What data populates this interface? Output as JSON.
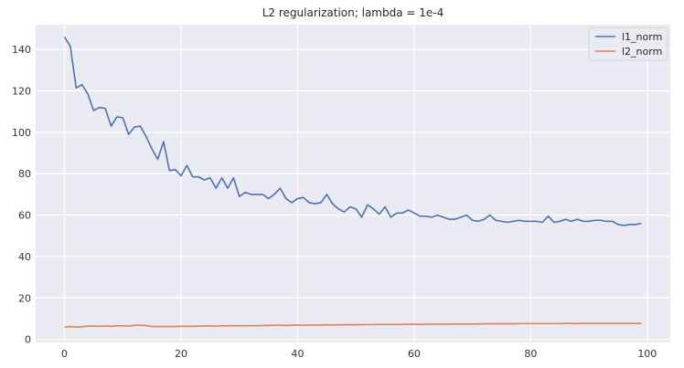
{
  "chart_data": {
    "type": "line",
    "title": "L2 regularization; lambda = 1e-4",
    "xlabel": "",
    "ylabel": "",
    "xlim": [
      -4.95,
      103.95
    ],
    "ylim": [
      -1.5,
      152
    ],
    "xticks": [
      0,
      20,
      40,
      60,
      80,
      100
    ],
    "yticks": [
      0,
      20,
      40,
      60,
      80,
      100,
      120,
      140
    ],
    "grid": true,
    "legend": "top-right",
    "series": [
      {
        "name": "l1_norm",
        "color": "#4c72b0",
        "x": [
          0,
          1,
          2,
          3,
          4,
          5,
          6,
          7,
          8,
          9,
          10,
          11,
          12,
          13,
          14,
          15,
          16,
          17,
          18,
          19,
          20,
          21,
          22,
          23,
          24,
          25,
          26,
          27,
          28,
          29,
          30,
          31,
          32,
          33,
          34,
          35,
          36,
          37,
          38,
          39,
          40,
          41,
          42,
          43,
          44,
          45,
          46,
          47,
          48,
          49,
          50,
          51,
          52,
          53,
          54,
          55,
          56,
          57,
          58,
          59,
          60,
          61,
          62,
          63,
          64,
          65,
          66,
          67,
          68,
          69,
          70,
          71,
          72,
          73,
          74,
          75,
          76,
          77,
          78,
          79,
          80,
          81,
          82,
          83,
          84,
          85,
          86,
          87,
          88,
          89,
          90,
          91,
          92,
          93,
          94,
          95,
          96,
          97,
          98,
          99
        ],
        "y": [
          146,
          141.5,
          121.5,
          123,
          118.5,
          110.5,
          112,
          111.5,
          103,
          107.5,
          107,
          99,
          102.5,
          103,
          98,
          92,
          87,
          95.5,
          81.5,
          82,
          79,
          84,
          78.5,
          78.5,
          77,
          78,
          73,
          78,
          73,
          78,
          69,
          71,
          70,
          70,
          70,
          68,
          70,
          73,
          68,
          66,
          68,
          68.5,
          66,
          65.5,
          66,
          70,
          65.5,
          63,
          61.5,
          64,
          63,
          59,
          65,
          63,
          60.5,
          64,
          59,
          61,
          61,
          62.5,
          61,
          59.5,
          59.5,
          59,
          60,
          59,
          58,
          58,
          59,
          60,
          57.5,
          57,
          58,
          60,
          57.5,
          57,
          56.5,
          57,
          57.5,
          57,
          57,
          57,
          56.5,
          59.5,
          56.5,
          57,
          58,
          57,
          58,
          57,
          57,
          57.5,
          57.5,
          57,
          57,
          55.5,
          55,
          55.5,
          55.5,
          56
        ]
      },
      {
        "name": "l2_norm",
        "color": "#dd8452",
        "x": [
          0,
          1,
          2,
          3,
          4,
          5,
          6,
          7,
          8,
          9,
          10,
          11,
          12,
          13,
          14,
          15,
          16,
          17,
          18,
          19,
          20,
          21,
          22,
          23,
          24,
          25,
          26,
          27,
          28,
          29,
          30,
          31,
          32,
          33,
          34,
          35,
          36,
          37,
          38,
          39,
          40,
          41,
          42,
          43,
          44,
          45,
          46,
          47,
          48,
          49,
          50,
          51,
          52,
          53,
          54,
          55,
          56,
          57,
          58,
          59,
          60,
          61,
          62,
          63,
          64,
          65,
          66,
          67,
          68,
          69,
          70,
          71,
          72,
          73,
          74,
          75,
          76,
          77,
          78,
          79,
          80,
          81,
          82,
          83,
          84,
          85,
          86,
          87,
          88,
          89,
          90,
          91,
          92,
          93,
          94,
          95,
          96,
          97,
          98,
          99
        ],
        "y": [
          5.9,
          6.2,
          5.9,
          6.1,
          6.4,
          6.4,
          6.3,
          6.4,
          6.3,
          6.5,
          6.5,
          6.4,
          6.8,
          6.8,
          6.7,
          6.2,
          6.2,
          6.2,
          6.2,
          6.2,
          6.3,
          6.3,
          6.3,
          6.4,
          6.4,
          6.5,
          6.4,
          6.5,
          6.5,
          6.6,
          6.5,
          6.6,
          6.6,
          6.6,
          6.7,
          6.7,
          6.8,
          6.8,
          6.7,
          6.8,
          6.9,
          6.8,
          6.9,
          6.9,
          6.9,
          7.0,
          6.9,
          7.0,
          7.0,
          7.1,
          7.0,
          7.1,
          7.1,
          7.1,
          7.2,
          7.2,
          7.2,
          7.2,
          7.2,
          7.3,
          7.3,
          7.2,
          7.3,
          7.3,
          7.3,
          7.3,
          7.4,
          7.4,
          7.4,
          7.4,
          7.4,
          7.4,
          7.5,
          7.5,
          7.5,
          7.5,
          7.5,
          7.5,
          7.6,
          7.6,
          7.6,
          7.6,
          7.6,
          7.6,
          7.6,
          7.6,
          7.7,
          7.7,
          7.6,
          7.7,
          7.7,
          7.7,
          7.7,
          7.7,
          7.7,
          7.7,
          7.7,
          7.7,
          7.7,
          7.7
        ]
      }
    ]
  }
}
